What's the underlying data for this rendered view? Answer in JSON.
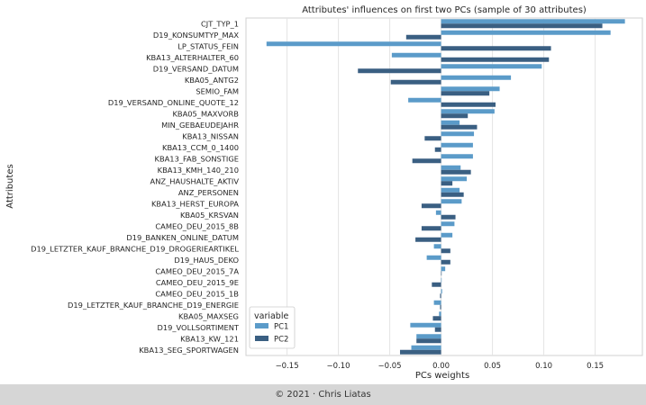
{
  "chart_data": {
    "type": "bar",
    "orientation": "horizontal",
    "title": "Attributes' influences on first two PCs (sample of 30 attributes)",
    "xlabel": "PCs weights",
    "ylabel": "Attributes",
    "xlim": [
      -0.19,
      0.196
    ],
    "xticks": [
      -0.15,
      -0.1,
      -0.05,
      0.0,
      0.05,
      0.1,
      0.15
    ],
    "xtick_labels": [
      "−0.15",
      "−0.10",
      "−0.05",
      "0.00",
      "0.05",
      "0.10",
      "0.15"
    ],
    "grid": true,
    "legend": {
      "title": "variable",
      "placement": "lower-left"
    },
    "categories": [
      "CJT_TYP_1",
      "D19_KONSUMTYP_MAX",
      "LP_STATUS_FEIN",
      "KBA13_ALTERHALTER_60",
      "D19_VERSAND_DATUM",
      "KBA05_ANTG2",
      "SEMIO_FAM",
      "D19_VERSAND_ONLINE_QUOTE_12",
      "KBA05_MAXVORB",
      "MIN_GEBAEUDEJAHR",
      "KBA13_NISSAN",
      "KBA13_CCM_0_1400",
      "KBA13_FAB_SONSTIGE",
      "KBA13_KMH_140_210",
      "ANZ_HAUSHALTE_AKTIV",
      "ANZ_PERSONEN",
      "KBA13_HERST_EUROPA",
      "KBA05_KRSVAN",
      "CAMEO_DEU_2015_8B",
      "D19_BANKEN_ONLINE_DATUM",
      "D19_LETZTER_KAUF_BRANCHE_D19_DROGERIEARTIKEL",
      "D19_HAUS_DEKO",
      "CAMEO_DEU_2015_7A",
      "CAMEO_DEU_2015_9E",
      "CAMEO_DEU_2015_1B",
      "D19_LETZTER_KAUF_BRANCHE_D19_ENERGIE",
      "KBA05_MAXSEG",
      "D19_VOLLSORTIMENT",
      "KBA13_KW_121",
      "KBA13_SEG_SPORTWAGEN"
    ],
    "series": [
      {
        "name": "PC1",
        "color": "#5b9bc9",
        "values": [
          0.179,
          0.165,
          -0.17,
          -0.048,
          0.098,
          0.068,
          0.057,
          -0.032,
          0.052,
          0.018,
          0.032,
          0.031,
          0.031,
          0.019,
          0.025,
          0.018,
          0.02,
          -0.005,
          0.013,
          0.011,
          -0.007,
          -0.014,
          0.004,
          0.0,
          0.001,
          -0.007,
          -0.002,
          -0.03,
          -0.024,
          -0.029
        ]
      },
      {
        "name": "PC2",
        "color": "#3a5f82",
        "values": [
          0.157,
          -0.034,
          0.107,
          0.105,
          -0.081,
          -0.049,
          0.047,
          0.053,
          0.026,
          0.035,
          -0.016,
          -0.006,
          -0.028,
          0.029,
          0.011,
          0.022,
          -0.019,
          0.014,
          -0.019,
          -0.025,
          0.009,
          0.009,
          0.0,
          -0.009,
          -0.001,
          -0.001,
          -0.008,
          -0.006,
          -0.024,
          -0.04
        ]
      }
    ]
  },
  "footer": {
    "text": "© 2021 · Chris Liatas"
  }
}
